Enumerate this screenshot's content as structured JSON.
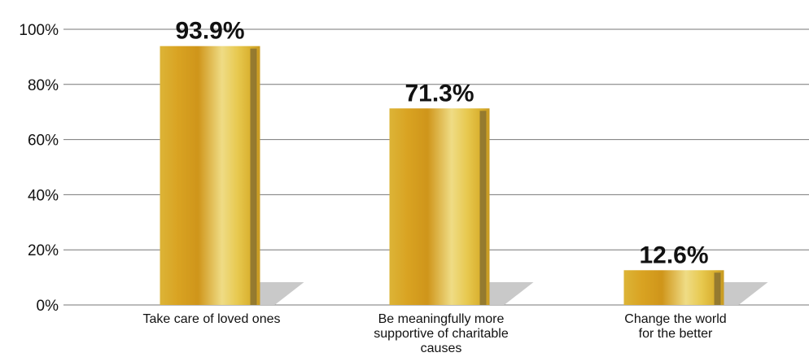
{
  "chart_data": {
    "type": "bar",
    "categories": [
      "Take care of loved ones",
      "Be meaningfully more supportive of charitable causes",
      "Change the world for the better"
    ],
    "category_label_lines": [
      [
        "Take care of loved ones"
      ],
      [
        "Be meaningfully more",
        "supportive of charitable",
        "causes"
      ],
      [
        "Change the world",
        "for the better"
      ]
    ],
    "values": [
      93.9,
      71.3,
      12.6
    ],
    "data_labels": [
      "93.9%",
      "71.3%",
      "12.6%"
    ],
    "ylim": [
      0,
      100
    ],
    "y_ticks": [
      0,
      20,
      40,
      60,
      80,
      100
    ],
    "y_tick_labels": [
      "0%",
      "20%",
      "40%",
      "60%",
      "80%",
      "100%"
    ],
    "title": "",
    "xlabel": "",
    "ylabel": "",
    "grid": true,
    "legend": "none",
    "colors": {
      "bar_gold_dark": "#c9960f",
      "bar_gold_mid": "#e1b42c",
      "bar_gold_light": "#f2e28c",
      "bar_edge": "#8a7230",
      "shadow": "#c9c9c9",
      "grid": "#777777",
      "text": "#111111"
    }
  }
}
